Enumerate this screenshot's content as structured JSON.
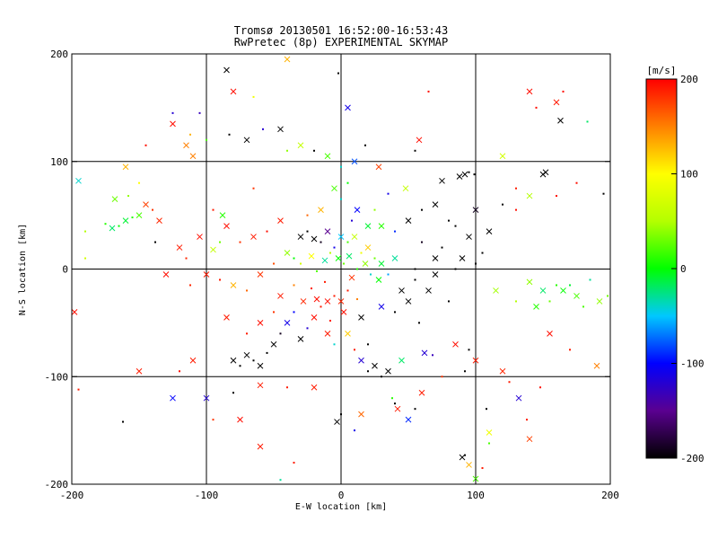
{
  "chart_data": {
    "type": "scatter",
    "title": "Tromsø 20130501 16:52:00-16:53:43",
    "subtitle": "RwPretec (8p) EXPERIMENTAL SKYMAP",
    "xlabel": "E-W location [km]",
    "ylabel": "N-S location [km]",
    "xlim": [
      -200,
      200
    ],
    "ylim": [
      -200,
      200
    ],
    "xticks": [
      "-200",
      "-100",
      "0",
      "100",
      "200"
    ],
    "yticks": [
      "-200",
      "-100",
      "0",
      "100",
      "200"
    ],
    "grid": true,
    "grid_lines": [
      -100,
      0,
      100
    ],
    "colorbar": {
      "label": "[m/s]",
      "range": [
        -200,
        200
      ],
      "ticks": [
        "-200",
        "-100",
        "0",
        "100",
        "200"
      ],
      "colormap": "rainbow"
    },
    "markers": [
      "dot",
      "x"
    ],
    "points": [
      {
        "x": -150,
        "y": 50,
        "v": 20
      },
      {
        "x": -155,
        "y": 48,
        "v": 10
      },
      {
        "x": -160,
        "y": 45,
        "v": -10
      },
      {
        "x": -165,
        "y": 40,
        "v": 0
      },
      {
        "x": -170,
        "y": 38,
        "v": -20
      },
      {
        "x": -175,
        "y": 42,
        "v": 10
      },
      {
        "x": -168,
        "y": 65,
        "v": 30
      },
      {
        "x": -158,
        "y": 68,
        "v": 40
      },
      {
        "x": -145,
        "y": 60,
        "v": 175
      },
      {
        "x": -140,
        "y": 55,
        "v": 180
      },
      {
        "x": -135,
        "y": 45,
        "v": 185
      },
      {
        "x": -190,
        "y": 35,
        "v": 50
      },
      {
        "x": -195,
        "y": 82,
        "v": -40
      },
      {
        "x": -190,
        "y": 10,
        "v": 70
      },
      {
        "x": -198,
        "y": -40,
        "v": 195
      },
      {
        "x": -195,
        "y": -112,
        "v": 190
      },
      {
        "x": -150,
        "y": -95,
        "v": 190
      },
      {
        "x": -162,
        "y": -142,
        "v": -200
      },
      {
        "x": -125,
        "y": -120,
        "v": -100
      },
      {
        "x": -125,
        "y": 145,
        "v": -120
      },
      {
        "x": -125,
        "y": 135,
        "v": 195
      },
      {
        "x": -112,
        "y": 125,
        "v": 130
      },
      {
        "x": -110,
        "y": 105,
        "v": 150
      },
      {
        "x": -105,
        "y": 145,
        "v": -130
      },
      {
        "x": -85,
        "y": 185,
        "v": -200
      },
      {
        "x": -83,
        "y": 125,
        "v": -200
      },
      {
        "x": -80,
        "y": 165,
        "v": 195
      },
      {
        "x": -65,
        "y": 75,
        "v": 180
      },
      {
        "x": -70,
        "y": 120,
        "v": -200
      },
      {
        "x": -58,
        "y": 130,
        "v": -120
      },
      {
        "x": -45,
        "y": 130,
        "v": -200
      },
      {
        "x": -40,
        "y": 110,
        "v": 40
      },
      {
        "x": -30,
        "y": 115,
        "v": 60
      },
      {
        "x": -20,
        "y": 110,
        "v": -200
      },
      {
        "x": -10,
        "y": 105,
        "v": 20
      },
      {
        "x": 0,
        "y": 95,
        "v": -40
      },
      {
        "x": 10,
        "y": 100,
        "v": -80
      },
      {
        "x": 18,
        "y": 115,
        "v": -200
      },
      {
        "x": 28,
        "y": 95,
        "v": 175
      },
      {
        "x": 35,
        "y": 70,
        "v": -110
      },
      {
        "x": 48,
        "y": 75,
        "v": 60
      },
      {
        "x": 55,
        "y": 110,
        "v": -200
      },
      {
        "x": 58,
        "y": 120,
        "v": 195
      },
      {
        "x": 65,
        "y": 165,
        "v": 195
      },
      {
        "x": 5,
        "y": 150,
        "v": -110
      },
      {
        "x": -2,
        "y": 182,
        "v": -200
      },
      {
        "x": -40,
        "y": 195,
        "v": 130
      },
      {
        "x": -65,
        "y": 160,
        "v": 90
      },
      {
        "x": 92,
        "y": 88,
        "v": -200
      },
      {
        "x": 95,
        "y": 90,
        "v": -200
      },
      {
        "x": 88,
        "y": 86,
        "v": -200
      },
      {
        "x": 99,
        "y": 88,
        "v": -200
      },
      {
        "x": 75,
        "y": 82,
        "v": -200
      },
      {
        "x": 80,
        "y": 45,
        "v": -200
      },
      {
        "x": 90,
        "y": 10,
        "v": -200
      },
      {
        "x": 100,
        "y": 5,
        "v": -200
      },
      {
        "x": 70,
        "y": -5,
        "v": -200
      },
      {
        "x": 55,
        "y": -10,
        "v": -200
      },
      {
        "x": 45,
        "y": -20,
        "v": -200
      },
      {
        "x": 60,
        "y": 25,
        "v": -190
      },
      {
        "x": 120,
        "y": 105,
        "v": 70
      },
      {
        "x": 130,
        "y": 75,
        "v": 190
      },
      {
        "x": 140,
        "y": 165,
        "v": 195
      },
      {
        "x": 145,
        "y": 150,
        "v": 195
      },
      {
        "x": 160,
        "y": 155,
        "v": 190
      },
      {
        "x": 165,
        "y": 165,
        "v": 195
      },
      {
        "x": 163,
        "y": 138,
        "v": -200
      },
      {
        "x": 183,
        "y": 137,
        "v": -20
      },
      {
        "x": 150,
        "y": 88,
        "v": -200
      },
      {
        "x": 160,
        "y": 68,
        "v": 195
      },
      {
        "x": 140,
        "y": 68,
        "v": 50
      },
      {
        "x": 130,
        "y": 55,
        "v": 195
      },
      {
        "x": 150,
        "y": -20,
        "v": -20
      },
      {
        "x": 160,
        "y": -15,
        "v": 10
      },
      {
        "x": 165,
        "y": -20,
        "v": 0
      },
      {
        "x": 170,
        "y": -15,
        "v": -10
      },
      {
        "x": 175,
        "y": -25,
        "v": 20
      },
      {
        "x": 155,
        "y": -30,
        "v": 30
      },
      {
        "x": 145,
        "y": -35,
        "v": 10
      },
      {
        "x": 185,
        "y": -10,
        "v": -30
      },
      {
        "x": 140,
        "y": -12,
        "v": 40
      },
      {
        "x": 130,
        "y": -30,
        "v": 50
      },
      {
        "x": 115,
        "y": -20,
        "v": 45
      },
      {
        "x": 198,
        "y": -25,
        "v": 30
      },
      {
        "x": 120,
        "y": -95,
        "v": 185
      },
      {
        "x": 125,
        "y": -105,
        "v": 190
      },
      {
        "x": 132,
        "y": -120,
        "v": -120
      },
      {
        "x": 138,
        "y": -140,
        "v": 190
      },
      {
        "x": 140,
        "y": -158,
        "v": 175
      },
      {
        "x": 108,
        "y": -130,
        "v": -200
      },
      {
        "x": 110,
        "y": -152,
        "v": 90
      },
      {
        "x": 110,
        "y": -162,
        "v": 20
      },
      {
        "x": 95,
        "y": -182,
        "v": 130
      },
      {
        "x": 105,
        "y": -185,
        "v": 190
      },
      {
        "x": 90,
        "y": -175,
        "v": -200
      },
      {
        "x": 92,
        "y": -173,
        "v": -200
      },
      {
        "x": 100,
        "y": -195,
        "v": 20
      },
      {
        "x": 75,
        "y": -100,
        "v": 180
      },
      {
        "x": 60,
        "y": -115,
        "v": 190
      },
      {
        "x": 40,
        "y": -125,
        "v": -200
      },
      {
        "x": 42,
        "y": -130,
        "v": 190
      },
      {
        "x": 38,
        "y": -120,
        "v": 10
      },
      {
        "x": 50,
        "y": -140,
        "v": -90
      },
      {
        "x": 55,
        "y": -130,
        "v": -200
      },
      {
        "x": 15,
        "y": -135,
        "v": 160
      },
      {
        "x": 0,
        "y": -135,
        "v": -200
      },
      {
        "x": -3,
        "y": -142,
        "v": -200
      },
      {
        "x": 10,
        "y": -150,
        "v": -110
      },
      {
        "x": -20,
        "y": -110,
        "v": 190
      },
      {
        "x": -40,
        "y": -110,
        "v": 190
      },
      {
        "x": -60,
        "y": -108,
        "v": 190
      },
      {
        "x": -80,
        "y": -115,
        "v": -200
      },
      {
        "x": -75,
        "y": -140,
        "v": 195
      },
      {
        "x": -95,
        "y": -140,
        "v": 180
      },
      {
        "x": -100,
        "y": -120,
        "v": -120
      },
      {
        "x": -120,
        "y": -95,
        "v": 195
      },
      {
        "x": -110,
        "y": -85,
        "v": 190
      },
      {
        "x": -45,
        "y": -196,
        "v": -30
      },
      {
        "x": -60,
        "y": -165,
        "v": 190
      },
      {
        "x": -35,
        "y": -180,
        "v": 190
      },
      {
        "x": -80,
        "y": -85,
        "v": -200
      },
      {
        "x": -75,
        "y": -90,
        "v": -200
      },
      {
        "x": -70,
        "y": -80,
        "v": -200
      },
      {
        "x": -65,
        "y": -85,
        "v": -200
      },
      {
        "x": -60,
        "y": -90,
        "v": -200
      },
      {
        "x": -55,
        "y": -78,
        "v": -200
      },
      {
        "x": -50,
        "y": -70,
        "v": -200
      },
      {
        "x": -45,
        "y": -60,
        "v": -190
      },
      {
        "x": -40,
        "y": -50,
        "v": -110
      },
      {
        "x": -35,
        "y": -40,
        "v": -100
      },
      {
        "x": -30,
        "y": -65,
        "v": -200
      },
      {
        "x": -25,
        "y": -55,
        "v": -120
      },
      {
        "x": -20,
        "y": -45,
        "v": 195
      },
      {
        "x": -15,
        "y": -35,
        "v": 190
      },
      {
        "x": -10,
        "y": -30,
        "v": 195
      },
      {
        "x": -5,
        "y": -25,
        "v": 190
      },
      {
        "x": 0,
        "y": -30,
        "v": 185
      },
      {
        "x": 5,
        "y": -20,
        "v": 190
      },
      {
        "x": 2,
        "y": -40,
        "v": 195
      },
      {
        "x": -8,
        "y": -48,
        "v": 190
      },
      {
        "x": -18,
        "y": -28,
        "v": 195
      },
      {
        "x": -22,
        "y": -18,
        "v": 190
      },
      {
        "x": -28,
        "y": -30,
        "v": 185
      },
      {
        "x": -12,
        "y": -12,
        "v": 190
      },
      {
        "x": 8,
        "y": -8,
        "v": 180
      },
      {
        "x": 12,
        "y": -28,
        "v": 150
      },
      {
        "x": 15,
        "y": -45,
        "v": -200
      },
      {
        "x": 20,
        "y": -70,
        "v": -200
      },
      {
        "x": 25,
        "y": -90,
        "v": -200
      },
      {
        "x": 30,
        "y": -100,
        "v": -200
      },
      {
        "x": 35,
        "y": -95,
        "v": -200
      },
      {
        "x": 20,
        "y": -95,
        "v": -200
      },
      {
        "x": 15,
        "y": -85,
        "v": -120
      },
      {
        "x": 10,
        "y": -75,
        "v": 190
      },
      {
        "x": 45,
        "y": -85,
        "v": -20
      },
      {
        "x": 58,
        "y": -50,
        "v": -200
      },
      {
        "x": 62,
        "y": -78,
        "v": -120
      },
      {
        "x": 68,
        "y": -80,
        "v": -130
      },
      {
        "x": 85,
        "y": -70,
        "v": 195
      },
      {
        "x": 95,
        "y": -75,
        "v": -200
      },
      {
        "x": 100,
        "y": -85,
        "v": 190
      },
      {
        "x": 92,
        "y": -95,
        "v": -200
      },
      {
        "x": -30,
        "y": 30,
        "v": -200
      },
      {
        "x": -25,
        "y": 35,
        "v": -200
      },
      {
        "x": -20,
        "y": 28,
        "v": -200
      },
      {
        "x": -15,
        "y": 25,
        "v": -190
      },
      {
        "x": -10,
        "y": 35,
        "v": -150
      },
      {
        "x": -5,
        "y": 20,
        "v": -110
      },
      {
        "x": 0,
        "y": 30,
        "v": -50
      },
      {
        "x": 5,
        "y": 25,
        "v": 20
      },
      {
        "x": 10,
        "y": 30,
        "v": 60
      },
      {
        "x": 15,
        "y": 15,
        "v": 90
      },
      {
        "x": 20,
        "y": 20,
        "v": 120
      },
      {
        "x": 25,
        "y": 10,
        "v": 30
      },
      {
        "x": 30,
        "y": 5,
        "v": -10
      },
      {
        "x": -35,
        "y": 10,
        "v": 0
      },
      {
        "x": -40,
        "y": 15,
        "v": 40
      },
      {
        "x": -30,
        "y": 5,
        "v": 70
      },
      {
        "x": -22,
        "y": 12,
        "v": 100
      },
      {
        "x": -18,
        "y": -2,
        "v": 20
      },
      {
        "x": -12,
        "y": 8,
        "v": -30
      },
      {
        "x": -8,
        "y": 15,
        "v": 50
      },
      {
        "x": -2,
        "y": 10,
        "v": 0
      },
      {
        "x": 2,
        "y": 5,
        "v": 30
      },
      {
        "x": 6,
        "y": 12,
        "v": -20
      },
      {
        "x": 12,
        "y": 0,
        "v": 10
      },
      {
        "x": 18,
        "y": 5,
        "v": 40
      },
      {
        "x": 22,
        "y": -5,
        "v": -40
      },
      {
        "x": 28,
        "y": -10,
        "v": 0
      },
      {
        "x": 35,
        "y": -5,
        "v": -60
      },
      {
        "x": 40,
        "y": 10,
        "v": -30
      },
      {
        "x": 8,
        "y": 45,
        "v": -120
      },
      {
        "x": 12,
        "y": 55,
        "v": -100
      },
      {
        "x": 0,
        "y": 65,
        "v": -40
      },
      {
        "x": -5,
        "y": 75,
        "v": 20
      },
      {
        "x": 5,
        "y": 80,
        "v": 0
      },
      {
        "x": -15,
        "y": 55,
        "v": 130
      },
      {
        "x": -25,
        "y": 50,
        "v": 160
      },
      {
        "x": -45,
        "y": 45,
        "v": 190
      },
      {
        "x": -55,
        "y": 35,
        "v": 195
      },
      {
        "x": -65,
        "y": 30,
        "v": 190
      },
      {
        "x": -75,
        "y": 25,
        "v": 180
      },
      {
        "x": -85,
        "y": 40,
        "v": 195
      },
      {
        "x": -95,
        "y": 55,
        "v": 190
      },
      {
        "x": -105,
        "y": 30,
        "v": 195
      },
      {
        "x": -115,
        "y": 10,
        "v": 185
      },
      {
        "x": -120,
        "y": 20,
        "v": 190
      },
      {
        "x": -90,
        "y": -10,
        "v": 190
      },
      {
        "x": -80,
        "y": -15,
        "v": 130
      },
      {
        "x": -70,
        "y": -20,
        "v": 160
      },
      {
        "x": -60,
        "y": -5,
        "v": 180
      },
      {
        "x": -50,
        "y": 5,
        "v": 170
      },
      {
        "x": -100,
        "y": -5,
        "v": 190
      },
      {
        "x": -112,
        "y": -15,
        "v": 185
      },
      {
        "x": -130,
        "y": -5,
        "v": 195
      },
      {
        "x": -138,
        "y": 25,
        "v": -200
      },
      {
        "x": -95,
        "y": 18,
        "v": 60
      },
      {
        "x": -90,
        "y": 25,
        "v": 30
      },
      {
        "x": -88,
        "y": 50,
        "v": 10
      },
      {
        "x": -100,
        "y": 120,
        "v": 20
      },
      {
        "x": -115,
        "y": 115,
        "v": 150
      },
      {
        "x": -145,
        "y": 115,
        "v": 195
      },
      {
        "x": -160,
        "y": 95,
        "v": 130
      },
      {
        "x": -150,
        "y": 80,
        "v": 100
      },
      {
        "x": 20,
        "y": 40,
        "v": -10
      },
      {
        "x": 25,
        "y": 55,
        "v": 40
      },
      {
        "x": 30,
        "y": 40,
        "v": 10
      },
      {
        "x": 40,
        "y": 35,
        "v": -90
      },
      {
        "x": 50,
        "y": 45,
        "v": -200
      },
      {
        "x": 60,
        "y": 55,
        "v": -200
      },
      {
        "x": 70,
        "y": 60,
        "v": -200
      },
      {
        "x": 85,
        "y": 40,
        "v": -200
      },
      {
        "x": 95,
        "y": 30,
        "v": -200
      },
      {
        "x": 105,
        "y": 15,
        "v": -200
      },
      {
        "x": 110,
        "y": 35,
        "v": -200
      },
      {
        "x": 120,
        "y": 60,
        "v": -200
      },
      {
        "x": 100,
        "y": 55,
        "v": -190
      },
      {
        "x": 75,
        "y": 20,
        "v": -200
      },
      {
        "x": 65,
        "y": -20,
        "v": -200
      },
      {
        "x": 80,
        "y": -30,
        "v": -200
      },
      {
        "x": 50,
        "y": -30,
        "v": -200
      },
      {
        "x": 40,
        "y": -40,
        "v": -200
      },
      {
        "x": 30,
        "y": -35,
        "v": -110
      },
      {
        "x": 55,
        "y": 0,
        "v": -200
      },
      {
        "x": 70,
        "y": 10,
        "v": -200
      },
      {
        "x": 85,
        "y": 0,
        "v": -200
      },
      {
        "x": -10,
        "y": -60,
        "v": 190
      },
      {
        "x": -5,
        "y": -70,
        "v": -40
      },
      {
        "x": 5,
        "y": -60,
        "v": 120
      },
      {
        "x": -35,
        "y": -15,
        "v": 150
      },
      {
        "x": -45,
        "y": -25,
        "v": 190
      },
      {
        "x": -50,
        "y": -40,
        "v": 180
      },
      {
        "x": -60,
        "y": -50,
        "v": 195
      },
      {
        "x": -70,
        "y": -60,
        "v": 190
      },
      {
        "x": -85,
        "y": -45,
        "v": 190
      },
      {
        "x": 180,
        "y": -35,
        "v": 20
      },
      {
        "x": 192,
        "y": -30,
        "v": 40
      },
      {
        "x": 175,
        "y": 80,
        "v": 195
      },
      {
        "x": 152,
        "y": 90,
        "v": -200
      },
      {
        "x": 195,
        "y": 70,
        "v": -200
      },
      {
        "x": 190,
        "y": -90,
        "v": 150
      },
      {
        "x": 170,
        "y": -75,
        "v": 190
      },
      {
        "x": 155,
        "y": -60,
        "v": 195
      },
      {
        "x": 148,
        "y": -110,
        "v": 195
      }
    ]
  }
}
